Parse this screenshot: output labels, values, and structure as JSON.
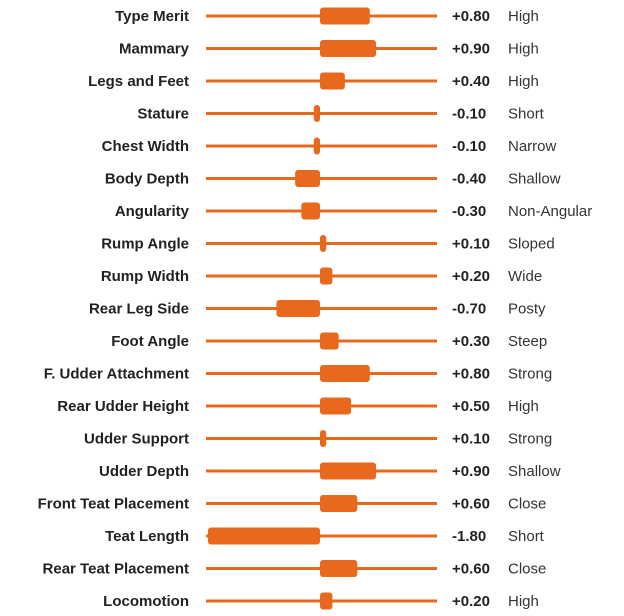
{
  "colors": {
    "bar": "#E8691E",
    "track": "#E8691E",
    "text": "#222222",
    "desc": "#333333"
  },
  "chart_data": {
    "type": "bar",
    "orientation": "horizontal",
    "xlim": [
      -1.8,
      1.8
    ],
    "baseline": 0,
    "rows": [
      {
        "trait": "Type Merit",
        "value": 0.8,
        "value_text": "+0.80",
        "desc": "High"
      },
      {
        "trait": "Mammary",
        "value": 0.9,
        "value_text": "+0.90",
        "desc": "High"
      },
      {
        "trait": "Legs and Feet",
        "value": 0.4,
        "value_text": "+0.40",
        "desc": "High"
      },
      {
        "trait": "Stature",
        "value": -0.1,
        "value_text": "-0.10",
        "desc": "Short"
      },
      {
        "trait": "Chest Width",
        "value": -0.1,
        "value_text": "-0.10",
        "desc": "Narrow"
      },
      {
        "trait": "Body Depth",
        "value": -0.4,
        "value_text": "-0.40",
        "desc": "Shallow"
      },
      {
        "trait": "Angularity",
        "value": -0.3,
        "value_text": "-0.30",
        "desc": "Non-Angular"
      },
      {
        "trait": "Rump Angle",
        "value": 0.1,
        "value_text": "+0.10",
        "desc": "Sloped"
      },
      {
        "trait": "Rump Width",
        "value": 0.2,
        "value_text": "+0.20",
        "desc": "Wide"
      },
      {
        "trait": "Rear Leg Side",
        "value": -0.7,
        "value_text": "-0.70",
        "desc": "Posty"
      },
      {
        "trait": "Foot Angle",
        "value": 0.3,
        "value_text": "+0.30",
        "desc": "Steep"
      },
      {
        "trait": "F. Udder Attachment",
        "value": 0.8,
        "value_text": "+0.80",
        "desc": "Strong"
      },
      {
        "trait": "Rear Udder Height",
        "value": 0.5,
        "value_text": "+0.50",
        "desc": "High"
      },
      {
        "trait": "Udder Support",
        "value": 0.1,
        "value_text": "+0.10",
        "desc": "Strong"
      },
      {
        "trait": "Udder Depth",
        "value": 0.9,
        "value_text": "+0.90",
        "desc": "Shallow"
      },
      {
        "trait": "Front Teat Placement",
        "value": 0.6,
        "value_text": "+0.60",
        "desc": "Close"
      },
      {
        "trait": "Teat Length",
        "value": -1.8,
        "value_text": "-1.80",
        "desc": "Short"
      },
      {
        "trait": "Rear Teat Placement",
        "value": 0.6,
        "value_text": "+0.60",
        "desc": "Close"
      },
      {
        "trait": "Locomotion",
        "value": 0.2,
        "value_text": "+0.20",
        "desc": "High"
      }
    ]
  }
}
